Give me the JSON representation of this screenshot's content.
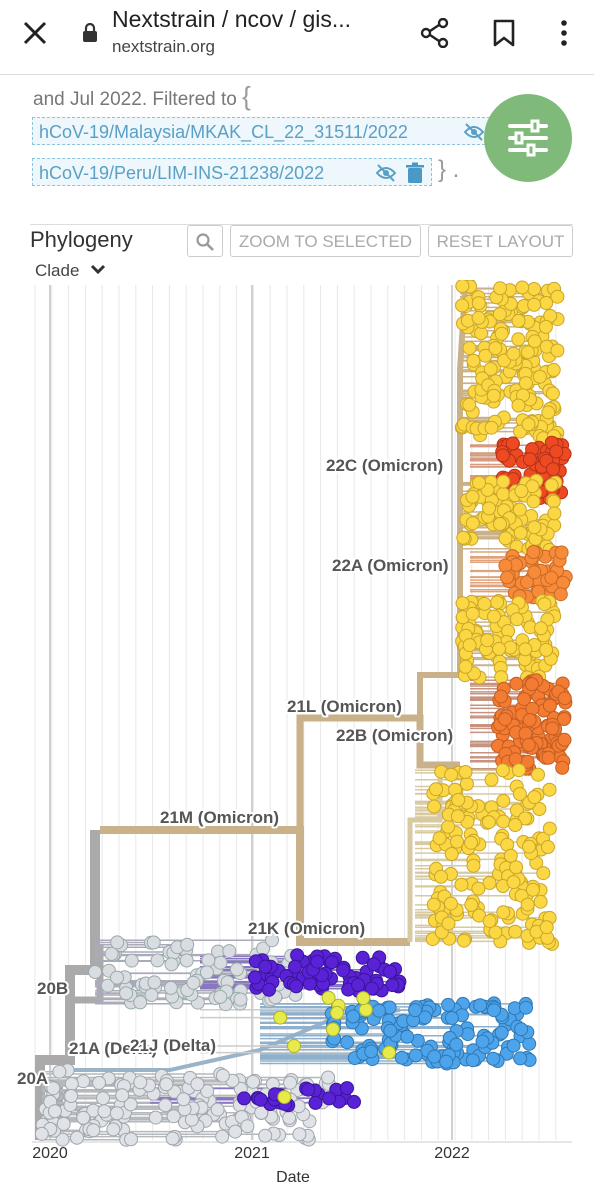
{
  "browser": {
    "title": "Nextstrain / ncov / gis...",
    "url": "nextstrain.org"
  },
  "filter": {
    "text": "and Jul 2022. Filtered to",
    "open_brace": "{",
    "strains": [
      "hCoV-19/Malaysia/MKAK_CL_22_31511/2022",
      "hCoV-19/Peru/LIM-INS-21238/2022"
    ],
    "close": "} ."
  },
  "panel": {
    "title": "Phylogeny",
    "buttons": [
      "ZOOM TO SELECTED",
      "RESET LAYOUT"
    ],
    "color_by": "Clade"
  },
  "tree": {
    "clade_labels": [
      "22C (Omicron)",
      "22A (Omicron)",
      "21L (Omicron)",
      "22B (Omicron)",
      "21M (Omicron)",
      "21K (Omicron)",
      "20B",
      "21A (Delta)",
      "21J (Delta)",
      "20A"
    ],
    "x_ticks": [
      "2020",
      "2021",
      "2022"
    ],
    "x_label": "Date"
  }
}
